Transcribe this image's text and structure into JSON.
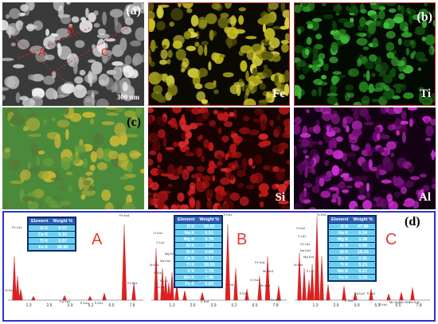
{
  "panels": {
    "a": {
      "label": "(a)",
      "scale_bar": "300 nm",
      "markers": [
        "A",
        "B",
        "C"
      ]
    },
    "b": {
      "label": "(b)",
      "element": "Ti"
    },
    "fe": {
      "element": "Fe"
    },
    "c": {
      "label": "(c)"
    },
    "si": {
      "element": "Si"
    },
    "al": {
      "element": "Al"
    },
    "d": {
      "label": "(d)"
    }
  },
  "colors": {
    "fe_map": "#c8c020",
    "ti_map": "#2fa02a",
    "si_map": "#c01818",
    "al_map": "#b020b0",
    "overlay_green": "#4b8a3a",
    "overlay_yellow": "#c3b535",
    "label_red": "#e23b2e",
    "frame_blue": "#2b34c8",
    "spectrum_fill": "#e02020",
    "table_header": "#2e5fb6",
    "table_cell": "#6bd0f0"
  },
  "spectra": [
    {
      "label": "A",
      "table": {
        "headers": [
          "Element",
          "Weight %"
        ],
        "rows": [
          [
            "Si K",
            "0.07"
          ],
          [
            "Ca K",
            "0.16"
          ],
          [
            "Ti K",
            "0.97"
          ],
          [
            "Fe K",
            "98.80"
          ]
        ]
      },
      "ticks": [
        "1.3",
        "2.6",
        "3.9",
        "5.2",
        "6.5",
        "7.8"
      ],
      "peak_labels": [
        "Fe Ka1",
        "Fe La1",
        "Fe Kb1",
        "Si Ka1",
        "Ca Ka1",
        "Ti Ka1",
        "Ti Kb1"
      ]
    },
    {
      "label": "B",
      "table": {
        "headers": [
          "Element",
          "Weight %"
        ],
        "rows": [
          [
            "O K",
            "39.92"
          ],
          [
            "Na K",
            "0.51"
          ],
          [
            "Mg K",
            "5.76"
          ],
          [
            "Al K",
            "3.23"
          ],
          [
            "Si K",
            "0.84"
          ],
          [
            "Ca K",
            "0.17"
          ],
          [
            "Ti K",
            "39.55"
          ],
          [
            "V K",
            "1.79"
          ],
          [
            "Mn K",
            "1.48"
          ],
          [
            "Fe K",
            "6.83"
          ]
        ]
      },
      "ticks": [
        "1.3",
        "2.6",
        "3.9",
        "5.2",
        "6.5",
        "7.8"
      ],
      "peak_labels": [
        "Ti Ka1",
        "O Ka1",
        "V La1",
        "Mg Ka1",
        "Na Ka1",
        "Al Ka1",
        "Si Ka1",
        "Ti La1",
        "Fe La1",
        "Ca Ka1",
        "K Ka1",
        "V Ka1",
        "Ti Kb1",
        "Cr Ka1",
        "Mn Ka1",
        "Fe Ka1",
        "Mn Kb1",
        "Fe Kb1"
      ]
    },
    {
      "label": "C",
      "table": {
        "headers": [
          "Element",
          "Weight %"
        ],
        "rows": [
          [
            "O K",
            "47.96"
          ],
          [
            "Na K",
            "6.24"
          ],
          [
            "Mg K",
            "1.08"
          ],
          [
            "Al K",
            "6.68"
          ],
          [
            "Si K",
            "18.20"
          ],
          [
            "Ca K",
            "2.41"
          ],
          [
            "Ti K",
            "5.23"
          ],
          [
            "Mn K",
            "0.27"
          ],
          [
            "Fe K",
            "0.29"
          ]
        ]
      },
      "ticks": [
        "1.3",
        "2.6",
        "3.9",
        "5.2",
        "6.5",
        "7.8"
      ],
      "peak_labels": [
        "Si Ka1",
        "O Ka1",
        "V La1",
        "Fe La1",
        "Na Ka1",
        "Mg Ka1",
        "Al Ka1",
        "Ti La1",
        "K Ka1",
        "Ca Ka1",
        "Ti Ka1",
        "Ti Kb1",
        "Mn Ka1",
        "Mn Kb1",
        "Fe Ka1"
      ]
    }
  ]
}
